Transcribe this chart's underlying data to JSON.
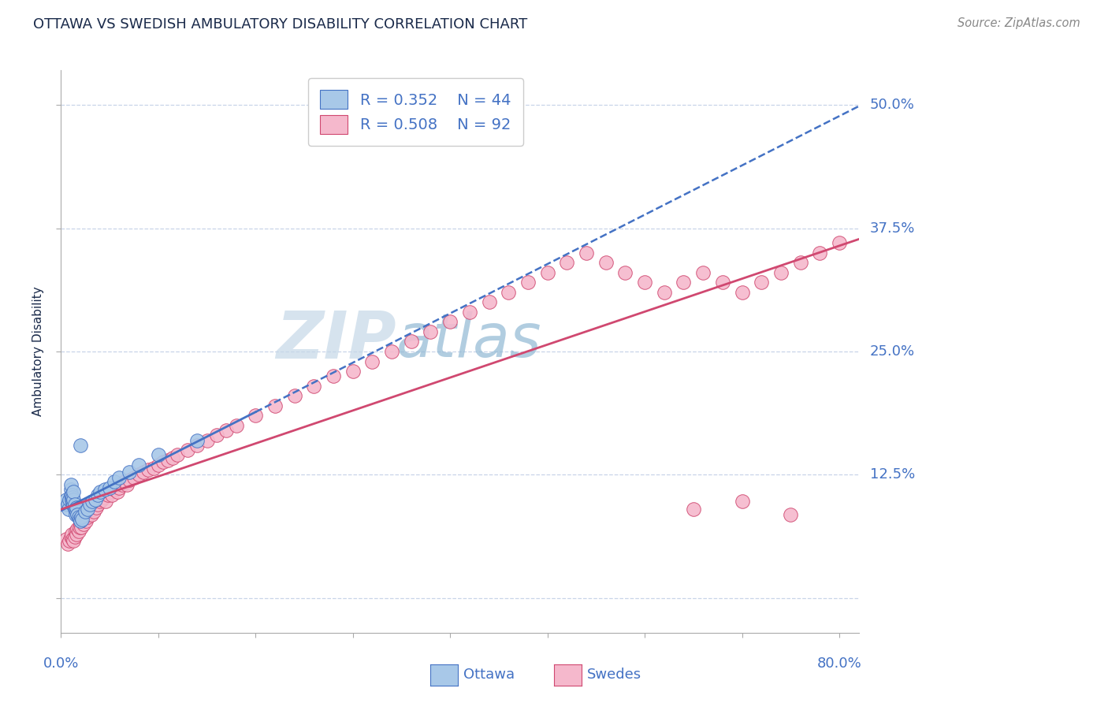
{
  "title": "OTTAWA VS SWEDISH AMBULATORY DISABILITY CORRELATION CHART",
  "source": "Source: ZipAtlas.com",
  "ylabel": "Ambulatory Disability",
  "xlim": [
    0.0,
    0.82
  ],
  "ylim": [
    -0.035,
    0.535
  ],
  "ytick_vals": [
    0.0,
    0.125,
    0.25,
    0.375,
    0.5
  ],
  "xtick_vals": [
    0.0,
    0.1,
    0.2,
    0.3,
    0.4,
    0.5,
    0.6,
    0.7,
    0.8
  ],
  "legend_R1": "R = 0.352",
  "legend_N1": "N = 44",
  "legend_R2": "R = 0.508",
  "legend_N2": "N = 92",
  "ottawa_color": "#a8c8e8",
  "swedes_color": "#f5b8cc",
  "ottawa_line_color": "#4472c4",
  "swedes_line_color": "#d04870",
  "grid_color": "#c8d4e8",
  "axis_label_color": "#4472c4",
  "title_color": "#1a2a4a",
  "background_color": "#ffffff",
  "ottawa_x": [
    0.005,
    0.005,
    0.007,
    0.008,
    0.009,
    0.01,
    0.01,
    0.01,
    0.011,
    0.011,
    0.012,
    0.012,
    0.012,
    0.013,
    0.013,
    0.013,
    0.014,
    0.014,
    0.015,
    0.015,
    0.016,
    0.016,
    0.017,
    0.018,
    0.019,
    0.02,
    0.021,
    0.022,
    0.025,
    0.027,
    0.03,
    0.032,
    0.035,
    0.038,
    0.04,
    0.045,
    0.05,
    0.055,
    0.06,
    0.07,
    0.08,
    0.1,
    0.14,
    0.02
  ],
  "ottawa_y": [
    0.095,
    0.1,
    0.095,
    0.09,
    0.1,
    0.105,
    0.11,
    0.115,
    0.1,
    0.105,
    0.095,
    0.098,
    0.102,
    0.095,
    0.1,
    0.108,
    0.09,
    0.095,
    0.085,
    0.09,
    0.088,
    0.092,
    0.085,
    0.082,
    0.08,
    0.078,
    0.082,
    0.08,
    0.088,
    0.09,
    0.095,
    0.098,
    0.1,
    0.105,
    0.108,
    0.11,
    0.112,
    0.118,
    0.122,
    0.128,
    0.135,
    0.145,
    0.16,
    0.155
  ],
  "swedes_x": [
    0.005,
    0.007,
    0.009,
    0.01,
    0.011,
    0.012,
    0.013,
    0.014,
    0.015,
    0.016,
    0.017,
    0.018,
    0.019,
    0.02,
    0.021,
    0.022,
    0.023,
    0.024,
    0.025,
    0.026,
    0.027,
    0.028,
    0.03,
    0.031,
    0.033,
    0.034,
    0.036,
    0.038,
    0.04,
    0.042,
    0.044,
    0.046,
    0.048,
    0.05,
    0.052,
    0.055,
    0.058,
    0.06,
    0.063,
    0.065,
    0.068,
    0.07,
    0.075,
    0.08,
    0.085,
    0.09,
    0.095,
    0.1,
    0.105,
    0.11,
    0.115,
    0.12,
    0.13,
    0.14,
    0.15,
    0.16,
    0.17,
    0.18,
    0.2,
    0.22,
    0.24,
    0.26,
    0.28,
    0.3,
    0.32,
    0.34,
    0.36,
    0.38,
    0.4,
    0.42,
    0.44,
    0.46,
    0.48,
    0.5,
    0.52,
    0.54,
    0.56,
    0.58,
    0.6,
    0.62,
    0.64,
    0.66,
    0.68,
    0.7,
    0.72,
    0.74,
    0.76,
    0.78,
    0.8,
    0.65,
    0.7,
    0.75
  ],
  "swedes_y": [
    0.06,
    0.055,
    0.058,
    0.062,
    0.065,
    0.06,
    0.058,
    0.062,
    0.068,
    0.065,
    0.07,
    0.068,
    0.072,
    0.075,
    0.072,
    0.078,
    0.075,
    0.08,
    0.082,
    0.078,
    0.082,
    0.085,
    0.088,
    0.085,
    0.09,
    0.088,
    0.092,
    0.095,
    0.098,
    0.1,
    0.102,
    0.098,
    0.105,
    0.108,
    0.105,
    0.11,
    0.108,
    0.112,
    0.115,
    0.118,
    0.115,
    0.12,
    0.122,
    0.125,
    0.128,
    0.13,
    0.132,
    0.135,
    0.138,
    0.14,
    0.142,
    0.145,
    0.15,
    0.155,
    0.16,
    0.165,
    0.17,
    0.175,
    0.185,
    0.195,
    0.205,
    0.215,
    0.225,
    0.23,
    0.24,
    0.25,
    0.26,
    0.27,
    0.28,
    0.29,
    0.3,
    0.31,
    0.32,
    0.33,
    0.34,
    0.35,
    0.34,
    0.33,
    0.32,
    0.31,
    0.32,
    0.33,
    0.32,
    0.31,
    0.32,
    0.33,
    0.34,
    0.35,
    0.36,
    0.09,
    0.098,
    0.085
  ],
  "watermark_zip": "ZIP",
  "watermark_atlas": "atlas",
  "zip_color": "#c8d8e8",
  "atlas_color": "#90b8d8"
}
